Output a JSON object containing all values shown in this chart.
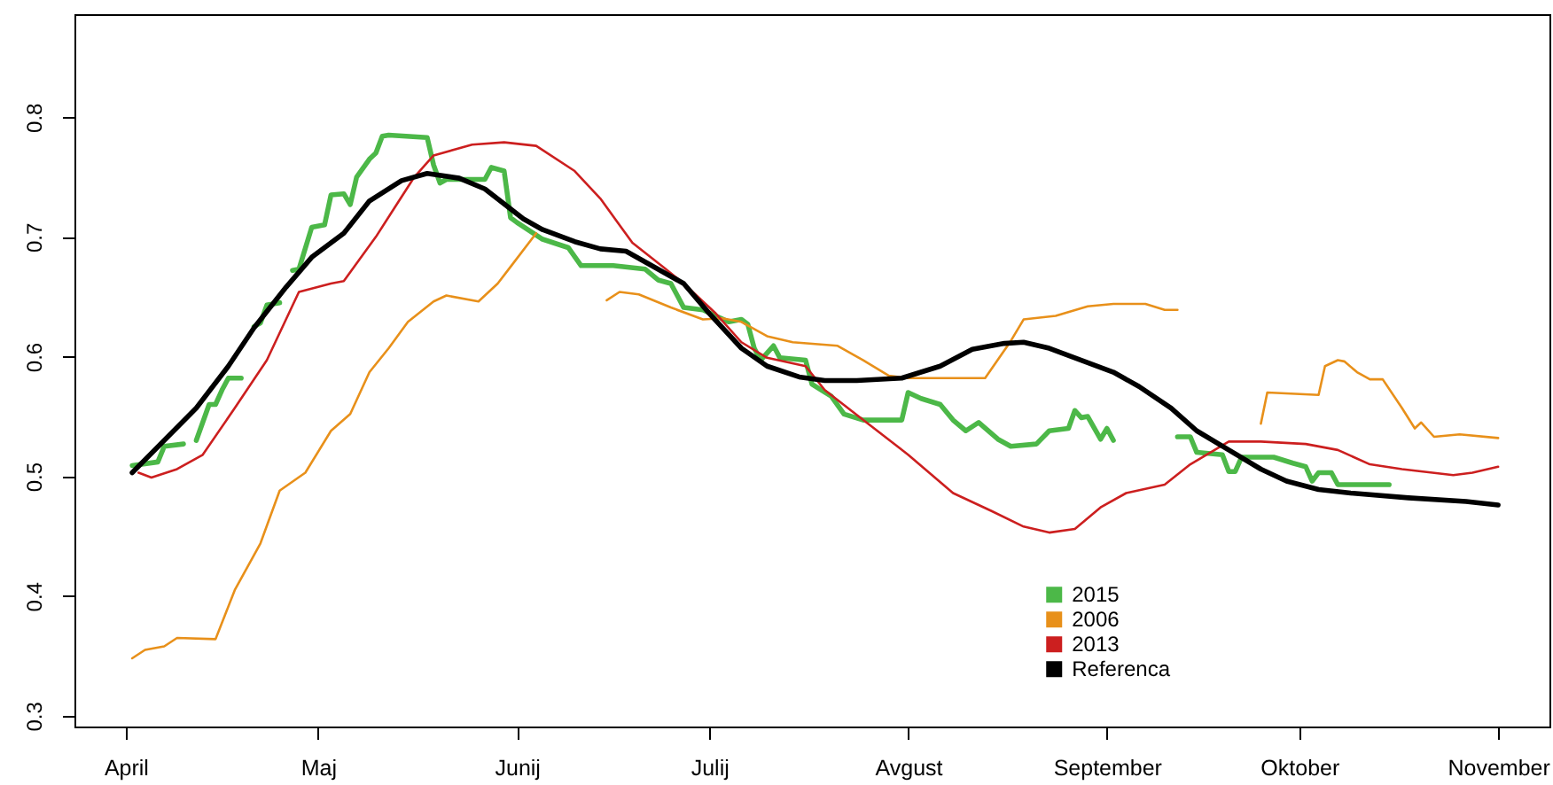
{
  "chart_data": {
    "type": "line",
    "xlim": [
      "--03-24",
      "--11-09"
    ],
    "xticks": [
      {
        "value": "--04-01",
        "label": "April"
      },
      {
        "value": "--05-01",
        "label": "Maj"
      },
      {
        "value": "--06-01",
        "label": "Junij"
      },
      {
        "value": "--07-01",
        "label": "Julij"
      },
      {
        "value": "--08-01",
        "label": "Avgust"
      },
      {
        "value": "--09-01",
        "label": "September"
      },
      {
        "value": "--10-01",
        "label": "Oktober"
      },
      {
        "value": "--11-01",
        "label": "November"
      }
    ],
    "ylim": [
      0.291,
      0.886
    ],
    "yticks": [
      0.3,
      0.4,
      0.5,
      0.6,
      0.7,
      0.8
    ],
    "legend": "bottom right",
    "series": [
      {
        "name": "2015",
        "color": "#4cb848",
        "x": [
          "--04-02",
          "--04-06",
          "--04-07",
          "--04-10",
          "--04-11",
          "--04-12",
          "--04-13",
          "--04-14",
          "--04-15",
          "--04-16",
          "--04-17",
          "--04-19",
          "--04-20",
          "--04-21",
          "--04-22",
          "--04-23",
          "--04-25",
          "--04-26",
          "--04-27",
          "--04-28",
          "--04-30",
          "--05-02",
          "--05-03",
          "--05-05",
          "--05-06",
          "--05-07",
          "--05-09",
          "--05-10",
          "--05-11",
          "--05-12",
          "--05-18",
          "--05-19",
          "--05-20",
          "--05-21",
          "--05-27",
          "--05-28",
          "--05-30",
          "--05-31",
          "--06-01",
          "--06-05",
          "--06-09",
          "--06-11",
          "--06-16",
          "--06-21",
          "--06-23",
          "--06-25",
          "--06-26",
          "--06-27",
          "--06-30",
          "--07-02",
          "--07-04",
          "--07-06",
          "--07-07",
          "--07-08",
          "--07-09",
          "--07-11",
          "--07-12",
          "--07-16",
          "--07-17",
          "--07-20",
          "--07-22",
          "--07-25",
          "--07-31",
          "--08-01",
          "--08-03",
          "--08-06",
          "--08-08",
          "--08-10",
          "--08-12",
          "--08-15",
          "--08-17",
          "--08-21",
          "--08-23",
          "--08-26",
          "--08-27",
          "--08-28",
          "--08-29",
          "--08-31",
          "--09-01",
          "--09-02",
          "--09-07",
          "--09-12",
          "--09-14",
          "--09-15",
          "--09-19",
          "--09-20",
          "--09-21",
          "--09-22",
          "--09-27",
          "--09-30",
          "--10-02",
          "--10-03",
          "--10-04",
          "--10-06",
          "--10-07",
          "--10-15"
        ],
        "values": [
          0.509,
          0.512,
          0.525,
          0.527,
          null,
          0.53,
          0.545,
          0.56,
          0.56,
          0.572,
          0.582,
          0.582,
          null,
          0.625,
          0.628,
          0.643,
          0.645,
          null,
          0.672,
          0.673,
          0.708,
          0.71,
          0.735,
          0.736,
          0.727,
          0.75,
          0.765,
          0.77,
          0.784,
          0.785,
          0.783,
          0.76,
          0.745,
          0.748,
          0.748,
          0.758,
          0.755,
          0.716,
          0.712,
          0.698,
          0.691,
          0.676,
          0.676,
          0.673,
          0.664,
          0.661,
          0.651,
          0.641,
          0.639,
          0.634,
          0.629,
          0.631,
          0.627,
          0.607,
          0.597,
          0.609,
          0.599,
          0.597,
          0.577,
          0.567,
          0.552,
          0.547,
          0.547,
          0.57,
          0.565,
          0.56,
          0.547,
          0.538,
          0.545,
          0.531,
          0.525,
          0.527,
          0.538,
          0.54,
          0.555,
          0.549,
          0.55,
          0.531,
          0.54,
          0.53,
          null,
          0.533,
          0.533,
          0.52,
          0.518,
          0.504,
          0.504,
          0.516,
          0.516,
          0.511,
          0.508,
          0.496,
          0.503,
          0.503,
          0.493,
          0.493
        ]
      },
      {
        "name": "2006",
        "color": "#e8901a",
        "x": [
          "--04-02",
          "--04-04",
          "--04-07",
          "--04-09",
          "--04-15",
          "--04-18",
          "--04-22",
          "--04-25",
          "--04-29",
          "--05-03",
          "--05-06",
          "--05-09",
          "--05-12",
          "--05-15",
          "--05-19",
          "--05-21",
          "--05-26",
          "--05-29",
          "--05-31",
          "--06-04",
          "--06-10",
          "--06-15",
          "--06-17",
          "--06-20",
          "--06-25",
          "--06-30",
          "--07-03",
          "--07-06",
          "--07-10",
          "--07-14",
          "--07-21",
          "--07-25",
          "--07-29",
          "--08-01",
          "--08-13",
          "--08-17",
          "--08-19",
          "--08-24",
          "--08-29",
          "--09-02",
          "--09-07",
          "--09-10",
          "--09-12",
          "--09-18",
          "--09-25",
          "--09-26",
          "--10-04",
          "--10-05",
          "--10-07",
          "--10-08",
          "--10-10",
          "--10-12",
          "--10-14",
          "--10-17",
          "--10-19",
          "--10-20",
          "--10-22",
          "--10-26",
          "--11-01"
        ],
        "values": [
          0.348,
          0.355,
          0.358,
          0.365,
          0.364,
          0.405,
          0.444,
          0.488,
          0.503,
          0.538,
          0.552,
          0.587,
          0.607,
          0.629,
          0.646,
          0.651,
          0.646,
          0.661,
          0.675,
          0.703,
          null,
          0.647,
          0.654,
          0.652,
          0.641,
          0.631,
          0.632,
          0.629,
          0.617,
          0.612,
          0.609,
          0.597,
          0.584,
          0.582,
          0.582,
          0.613,
          0.631,
          0.634,
          0.642,
          0.644,
          0.644,
          0.639,
          0.639,
          null,
          0.544,
          0.57,
          0.568,
          0.592,
          0.597,
          0.596,
          0.587,
          0.581,
          0.581,
          0.557,
          0.54,
          0.545,
          0.533,
          0.535,
          0.532
        ]
      },
      {
        "name": "2013",
        "color": "#cc1f1f",
        "x": [
          "--04-03",
          "--04-05",
          "--04-09",
          "--04-13",
          "--04-18",
          "--04-23",
          "--04-28",
          "--05-03",
          "--05-05",
          "--05-10",
          "--05-13",
          "--05-16",
          "--05-19",
          "--05-25",
          "--05-30",
          "--06-04",
          "--06-10",
          "--06-14",
          "--06-19",
          "--06-24",
          "--06-27",
          "--07-02",
          "--07-06",
          "--07-10",
          "--07-16",
          "--07-19",
          "--07-25",
          "--08-01",
          "--08-08",
          "--08-14",
          "--08-19",
          "--08-23",
          "--08-27",
          "--08-31",
          "--09-04",
          "--09-10",
          "--09-14",
          "--09-20",
          "--09-25",
          "--10-02",
          "--10-07",
          "--10-12",
          "--10-17",
          "--10-25",
          "--10-28",
          "--11-01"
        ],
        "values": [
          0.503,
          0.499,
          0.506,
          0.518,
          0.557,
          0.597,
          0.654,
          0.661,
          0.663,
          0.7,
          0.725,
          0.75,
          0.768,
          0.777,
          0.779,
          0.776,
          0.755,
          0.732,
          0.695,
          0.674,
          0.661,
          0.636,
          0.612,
          0.599,
          0.592,
          0.572,
          0.547,
          0.518,
          0.486,
          0.471,
          0.458,
          0.453,
          0.456,
          0.474,
          0.486,
          0.493,
          0.51,
          0.529,
          0.529,
          0.527,
          0.522,
          0.51,
          0.506,
          0.501,
          0.503,
          0.508
        ]
      },
      {
        "name": "Referenca",
        "color": "#000000",
        "x": [
          "--04-02",
          "--04-07",
          "--04-12",
          "--04-17",
          "--04-21",
          "--04-26",
          "--04-30",
          "--05-05",
          "--05-09",
          "--05-14",
          "--05-18",
          "--05-23",
          "--05-27",
          "--06-02",
          "--06-05",
          "--06-10",
          "--06-14",
          "--06-18",
          "--06-22",
          "--06-27",
          "--07-01",
          "--07-06",
          "--07-10",
          "--07-15",
          "--07-19",
          "--07-24",
          "--07-31",
          "--08-06",
          "--08-11",
          "--08-16",
          "--08-19",
          "--08-23",
          "--08-28",
          "--09-02",
          "--09-06",
          "--09-11",
          "--09-15",
          "--09-20",
          "--09-25",
          "--09-29",
          "--10-04",
          "--10-09",
          "--10-18",
          "--10-27",
          "--11-01"
        ],
        "values": [
          0.503,
          0.53,
          0.557,
          0.592,
          0.624,
          0.658,
          0.683,
          0.703,
          0.73,
          0.747,
          0.753,
          0.749,
          0.74,
          0.715,
          0.706,
          0.696,
          0.69,
          0.688,
          0.676,
          0.661,
          0.636,
          0.607,
          0.592,
          0.583,
          0.58,
          0.58,
          0.582,
          0.592,
          0.606,
          0.611,
          0.612,
          0.607,
          0.597,
          0.587,
          0.575,
          0.557,
          0.538,
          0.522,
          0.506,
          0.496,
          0.489,
          0.486,
          0.482,
          0.479,
          0.476
        ]
      }
    ]
  }
}
